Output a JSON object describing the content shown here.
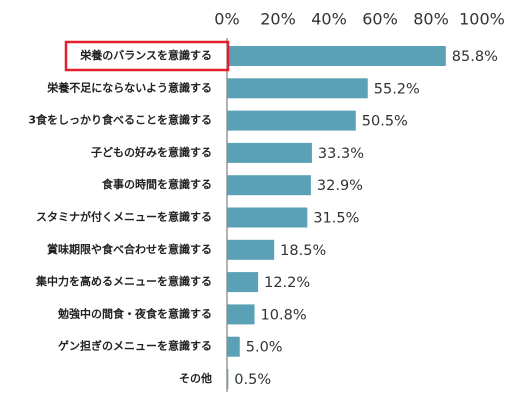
{
  "chart_data": {
    "type": "bar",
    "orientation": "horizontal",
    "categories": [
      "栄養のバランスを意識する",
      "栄養不足にならないよう意識する",
      "3食をしっかり食べることを意識する",
      "子どもの好みを意識する",
      "食事の時間を意識する",
      "スタミナが付くメニューを意識する",
      "賞味期限や食べ合わせを意識する",
      "集中力を高めるメニューを意識する",
      "勉強中の間食・夜食を意識する",
      "ゲン担ぎのメニューを意識する",
      "その他"
    ],
    "values": [
      85.8,
      55.2,
      50.5,
      33.3,
      32.9,
      31.5,
      18.5,
      12.2,
      10.8,
      5.0,
      0.5
    ],
    "value_labels": [
      "85.8%",
      "55.2%",
      "50.5%",
      "33.3%",
      "32.9%",
      "31.5%",
      "18.5%",
      "12.2%",
      "10.8%",
      "5.0%",
      "0.5%"
    ],
    "ticks": [
      {
        "value": 0,
        "label": "0%"
      },
      {
        "value": 20,
        "label": "20%"
      },
      {
        "value": 40,
        "label": "40%"
      },
      {
        "value": 60,
        "label": "60%"
      },
      {
        "value": 80,
        "label": "80%"
      },
      {
        "value": 100,
        "label": "100%"
      }
    ],
    "xlim": [
      0,
      100
    ],
    "grid": false,
    "legend": "none",
    "highlighted_category_index": 0,
    "colors": {
      "bar": "#5ba1b5",
      "axis": "#666666",
      "highlight": "#e0202a"
    }
  }
}
